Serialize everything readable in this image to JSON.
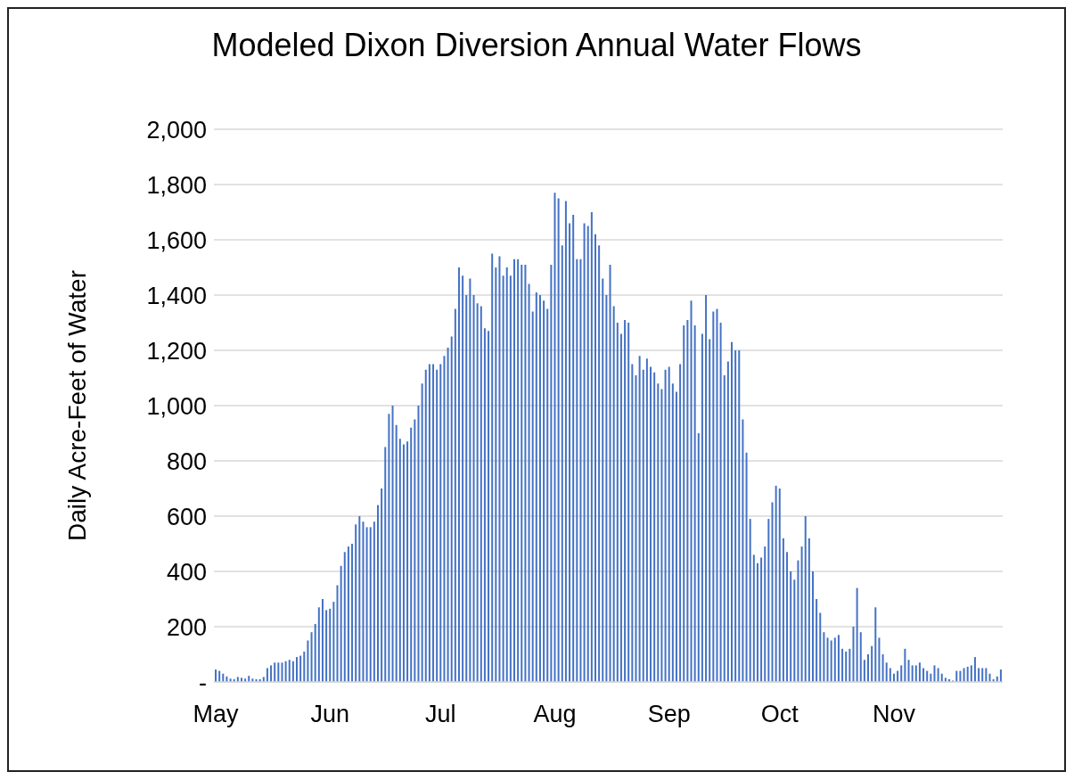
{
  "chart_data": {
    "type": "bar",
    "title": "Modeled Dixon Diversion Annual Water Flows",
    "ylabel": "Daily Acre-Feet of Water",
    "categories": [
      "May",
      null,
      null,
      null,
      null,
      null,
      null,
      null,
      null,
      null,
      null,
      null,
      null,
      null,
      null,
      null,
      null,
      null,
      null,
      null,
      null,
      null,
      null,
      null,
      null,
      null,
      null,
      null,
      null,
      null,
      null,
      "Jun",
      null,
      null,
      null,
      null,
      null,
      null,
      null,
      null,
      null,
      null,
      null,
      null,
      null,
      null,
      null,
      null,
      null,
      null,
      null,
      null,
      null,
      null,
      null,
      null,
      null,
      null,
      null,
      null,
      null,
      "Jul",
      null,
      null,
      null,
      null,
      null,
      null,
      null,
      null,
      null,
      null,
      null,
      null,
      null,
      null,
      null,
      null,
      null,
      null,
      null,
      null,
      null,
      null,
      null,
      null,
      null,
      null,
      null,
      null,
      null,
      null,
      "Aug",
      null,
      null,
      null,
      null,
      null,
      null,
      null,
      null,
      null,
      null,
      null,
      null,
      null,
      null,
      null,
      null,
      null,
      null,
      null,
      null,
      null,
      null,
      null,
      null,
      null,
      null,
      null,
      null,
      null,
      null,
      "Sep",
      null,
      null,
      null,
      null,
      null,
      null,
      null,
      null,
      null,
      null,
      null,
      null,
      null,
      null,
      null,
      null,
      null,
      null,
      null,
      null,
      null,
      null,
      null,
      null,
      null,
      null,
      null,
      null,
      null,
      "Oct",
      null,
      null,
      null,
      null,
      null,
      null,
      null,
      null,
      null,
      null,
      null,
      null,
      null,
      null,
      null,
      null,
      null,
      null,
      null,
      null,
      null,
      null,
      null,
      null,
      null,
      null,
      null,
      null,
      null,
      null,
      "Nov",
      null,
      null,
      null,
      null,
      null,
      null,
      null,
      null,
      null,
      null,
      null,
      null,
      null,
      null,
      null,
      null,
      null,
      null,
      null,
      null,
      null,
      null,
      null,
      null,
      null,
      null,
      null,
      null,
      null
    ],
    "values": [
      45,
      40,
      30,
      20,
      12,
      10,
      18,
      15,
      12,
      22,
      12,
      10,
      10,
      18,
      50,
      60,
      70,
      70,
      70,
      75,
      80,
      75,
      90,
      95,
      110,
      150,
      180,
      210,
      270,
      300,
      260,
      265,
      290,
      350,
      420,
      470,
      490,
      500,
      570,
      600,
      580,
      560,
      560,
      580,
      640,
      700,
      850,
      970,
      1000,
      930,
      880,
      860,
      870,
      920,
      950,
      1000,
      1080,
      1130,
      1150,
      1150,
      1130,
      1150,
      1180,
      1210,
      1250,
      1350,
      1500,
      1470,
      1400,
      1460,
      1400,
      1370,
      1360,
      1280,
      1270,
      1550,
      1500,
      1540,
      1470,
      1500,
      1470,
      1530,
      1530,
      1510,
      1510,
      1440,
      1340,
      1410,
      1400,
      1380,
      1350,
      1510,
      1770,
      1750,
      1580,
      1740,
      1660,
      1690,
      1530,
      1530,
      1660,
      1650,
      1700,
      1620,
      1580,
      1460,
      1400,
      1510,
      1360,
      1300,
      1260,
      1310,
      1300,
      1150,
      1110,
      1180,
      1130,
      1170,
      1140,
      1120,
      1080,
      1060,
      1130,
      1140,
      1080,
      1050,
      1150,
      1290,
      1310,
      1380,
      1290,
      900,
      1260,
      1400,
      1240,
      1340,
      1350,
      1300,
      1110,
      1160,
      1230,
      1200,
      1200,
      950,
      830,
      590,
      460,
      430,
      450,
      490,
      590,
      650,
      710,
      700,
      520,
      470,
      400,
      370,
      440,
      490,
      600,
      520,
      400,
      300,
      250,
      180,
      160,
      150,
      160,
      170,
      120,
      110,
      120,
      200,
      340,
      180,
      80,
      100,
      130,
      270,
      160,
      100,
      70,
      50,
      30,
      40,
      60,
      120,
      80,
      60,
      60,
      70,
      50,
      40,
      30,
      60,
      50,
      30,
      15,
      10,
      5,
      40,
      40,
      50,
      55,
      60,
      90,
      50,
      50,
      50,
      30,
      10,
      20,
      45
    ],
    "color": "#4472c4",
    "ylim": [
      0,
      2000
    ],
    "yticks": [
      {
        "value": 0,
        "label": "-"
      },
      {
        "value": 200,
        "label": "200"
      },
      {
        "value": 400,
        "label": "400"
      },
      {
        "value": 600,
        "label": "600"
      },
      {
        "value": 800,
        "label": "800"
      },
      {
        "value": 1000,
        "label": "1,000"
      },
      {
        "value": 1200,
        "label": "1,200"
      },
      {
        "value": 1400,
        "label": "1,400"
      },
      {
        "value": 1600,
        "label": "1,600"
      },
      {
        "value": 1800,
        "label": "1,800"
      },
      {
        "value": 2000,
        "label": "2,000"
      }
    ],
    "grid": "y"
  }
}
